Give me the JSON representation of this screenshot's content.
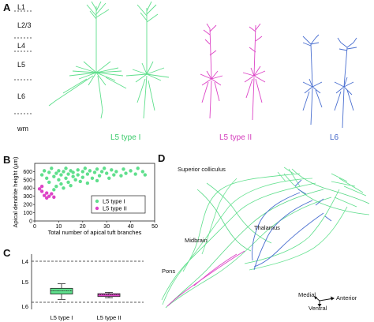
{
  "panel_a": {
    "letter": "A",
    "layers": [
      "L1",
      "L2/3",
      "L4",
      "L5",
      "L6",
      "wm"
    ],
    "type_labels": [
      "L5 type I",
      "L5 type II",
      "L6"
    ],
    "colors": {
      "type1": "#5fdf8c",
      "type2": "#dd44c6",
      "l6": "#4a6fd0"
    }
  },
  "panel_b": {
    "letter": "B",
    "legend": [
      "L5 type I",
      "L5 type II"
    ]
  },
  "panel_c": {
    "letter": "C",
    "layers": [
      "L4",
      "L5",
      "L6"
    ],
    "categories": [
      "L5 type I",
      "L5 type II"
    ]
  },
  "panel_d": {
    "letter": "D",
    "labels": {
      "superior_colliculus": "Superior colliculus",
      "thalamus": "Thalamus",
      "midbrain": "Midbrain",
      "pons": "Pons"
    },
    "compass": {
      "medial": "Medial",
      "anterior": "Anterior",
      "ventral": "Ventral"
    }
  },
  "chart_data": [
    {
      "type": "scatter",
      "xlabel": "Total number of apical tuft branches",
      "ylabel": "Apical dendrite height (µm)",
      "xlim": [
        0,
        50
      ],
      "ylim": [
        0,
        700
      ],
      "xticks": [
        "0",
        "10",
        "20",
        "30",
        "40",
        "50"
      ],
      "yticks": [
        "0",
        "100",
        "200",
        "300",
        "400",
        "500",
        "600"
      ],
      "legend_position": "bottom-right",
      "series": [
        {
          "name": "L5 type I",
          "color": "#5fdf8c",
          "points": [
            [
              3,
              560
            ],
            [
              4,
              610
            ],
            [
              5,
              520
            ],
            [
              6,
              590
            ],
            [
              6,
              470
            ],
            [
              7,
              640
            ],
            [
              8,
              540
            ],
            [
              9,
              580
            ],
            [
              9,
              420
            ],
            [
              10,
              610
            ],
            [
              10,
              500
            ],
            [
              11,
              560
            ],
            [
              11,
              450
            ],
            [
              12,
              600
            ],
            [
              13,
              520
            ],
            [
              13,
              640
            ],
            [
              14,
              570
            ],
            [
              14,
              470
            ],
            [
              15,
              610
            ],
            [
              16,
              540
            ],
            [
              16,
              590
            ],
            [
              17,
              500
            ],
            [
              18,
              620
            ],
            [
              18,
              560
            ],
            [
              19,
              480
            ],
            [
              20,
              600
            ],
            [
              20,
              530
            ],
            [
              21,
              640
            ],
            [
              22,
              570
            ],
            [
              23,
              610
            ],
            [
              24,
              520
            ],
            [
              25,
              590
            ],
            [
              26,
              630
            ],
            [
              27,
              550
            ],
            [
              28,
              600
            ],
            [
              29,
              640
            ],
            [
              30,
              580
            ],
            [
              31,
              520
            ],
            [
              32,
              620
            ],
            [
              33,
              560
            ],
            [
              34,
              600
            ],
            [
              36,
              550
            ],
            [
              37,
              630
            ],
            [
              38,
              580
            ],
            [
              40,
              610
            ],
            [
              42,
              570
            ],
            [
              43,
              640
            ],
            [
              45,
              600
            ],
            [
              46,
              560
            ],
            [
              8,
              380
            ],
            [
              12,
              400
            ],
            [
              15,
              430
            ],
            [
              22,
              460
            ],
            [
              26,
              490
            ]
          ]
        },
        {
          "name": "L5 type II",
          "color": "#dd44c6",
          "points": [
            [
              3,
              420
            ],
            [
              3,
              360
            ],
            [
              4,
              310
            ],
            [
              5,
              280
            ],
            [
              5,
              340
            ],
            [
              6,
              300
            ],
            [
              7,
              330
            ],
            [
              8,
              290
            ],
            [
              2,
              390
            ]
          ]
        }
      ]
    },
    {
      "type": "box",
      "categories": [
        "L5 type I",
        "L5 type II"
      ],
      "layer_ticks": [
        "L4",
        "L5",
        "L6"
      ],
      "series": [
        {
          "name": "L5 type I",
          "color": "#5fdf8c",
          "min": 0.55,
          "q1": 0.66,
          "median": 0.72,
          "q3": 0.8,
          "max": 0.93
        },
        {
          "name": "L5 type II",
          "color": "#dd44c6",
          "min": 0.76,
          "q1": 0.79,
          "median": 0.82,
          "q3": 0.86,
          "max": 0.89
        }
      ]
    }
  ]
}
